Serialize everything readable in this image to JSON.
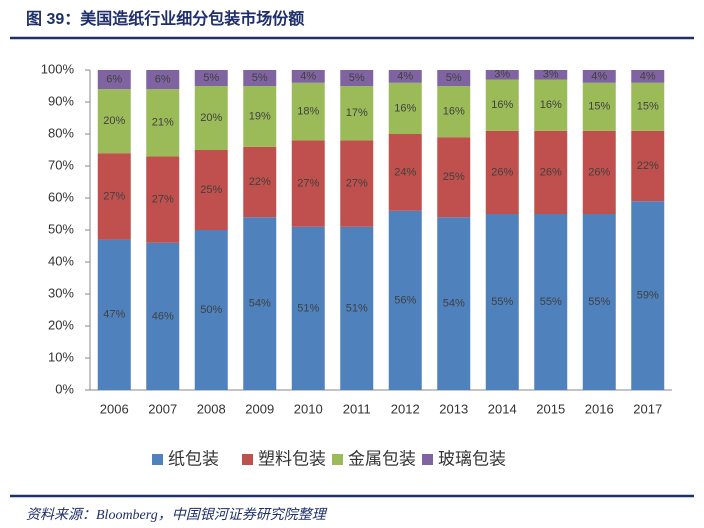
{
  "chart_data": {
    "type": "stacked_bar",
    "title": "图 39：美国造纸行业细分包装市场份额",
    "source": "资料来源：Bloomberg，中国银河证券研究院整理",
    "categories": [
      "2006",
      "2007",
      "2008",
      "2009",
      "2010",
      "2011",
      "2012",
      "2013",
      "2014",
      "2015",
      "2016",
      "2017"
    ],
    "series": [
      {
        "name": "纸包装",
        "color": "#4f81bd",
        "values": [
          47,
          46,
          50,
          54,
          51,
          51,
          56,
          54,
          55,
          55,
          55,
          59
        ],
        "value_labels": [
          "47%",
          "46%",
          "50%",
          "54%",
          "51%",
          "51%",
          "56%",
          "54%",
          "55%",
          "55%",
          "55%",
          "59%"
        ]
      },
      {
        "name": "塑料包装",
        "color": "#c0504d",
        "values": [
          27,
          27,
          25,
          22,
          27,
          27,
          24,
          25,
          26,
          26,
          26,
          22
        ],
        "value_labels": [
          "27%",
          "27%",
          "25%",
          "22%",
          "27%",
          "27%",
          "24%",
          "25%",
          "26%",
          "26%",
          "26%",
          "22%"
        ]
      },
      {
        "name": "金属包装",
        "color": "#9bbb59",
        "values": [
          20,
          21,
          20,
          19,
          18,
          17,
          16,
          16,
          16,
          16,
          15,
          15
        ],
        "value_labels": [
          "20%",
          "21%",
          "20%",
          "19%",
          "18%",
          "17%",
          "16%",
          "16%",
          "16%",
          "16%",
          "15%",
          "15%"
        ]
      },
      {
        "name": "玻璃包装",
        "color": "#8064a2",
        "values": [
          6,
          6,
          5,
          5,
          4,
          5,
          4,
          5,
          3,
          3,
          4,
          4
        ],
        "value_labels": [
          "6%",
          "6%",
          "5%",
          "5%",
          "4%",
          "5%",
          "4%",
          "5%",
          "3%",
          "3%",
          "4%",
          "4%"
        ]
      }
    ],
    "ylim": [
      0,
      100
    ],
    "yticks": [
      {
        "value": 0,
        "label": "0%"
      },
      {
        "value": 10,
        "label": "10%"
      },
      {
        "value": 20,
        "label": "20%"
      },
      {
        "value": 30,
        "label": "30%"
      },
      {
        "value": 40,
        "label": "40%"
      },
      {
        "value": 50,
        "label": "50%"
      },
      {
        "value": 60,
        "label": "60%"
      },
      {
        "value": 70,
        "label": "70%"
      },
      {
        "value": 80,
        "label": "80%"
      },
      {
        "value": 90,
        "label": "90%"
      },
      {
        "value": 100,
        "label": "100%"
      }
    ],
    "grid": false
  }
}
